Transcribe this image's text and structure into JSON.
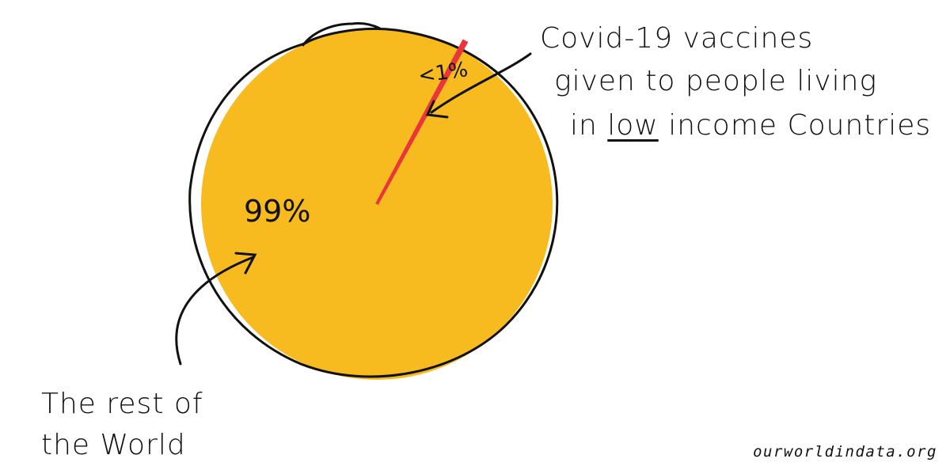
{
  "chart_data": {
    "type": "pie",
    "title": "",
    "slices": [
      {
        "label": "Covid-19 vaccines given to people living in low income countries",
        "value": 1,
        "value_label": "<1%",
        "color": "#e8363a"
      },
      {
        "label": "The rest of the world",
        "value": 99,
        "value_label": "99%",
        "color": "#f8bb1f"
      }
    ]
  },
  "annotations": {
    "small": {
      "line1": "Covid-19 vaccines",
      "line2": "given to people living",
      "line3_pre": "in ",
      "line3_low": "low",
      "line3_post": " income Countries"
    },
    "large": {
      "line1": "The rest of",
      "line2": "the World"
    }
  },
  "source": "ourworldindata.org",
  "colors": {
    "fill": "#f8bb1f",
    "outline": "#111111",
    "slice": "#e8363a"
  }
}
